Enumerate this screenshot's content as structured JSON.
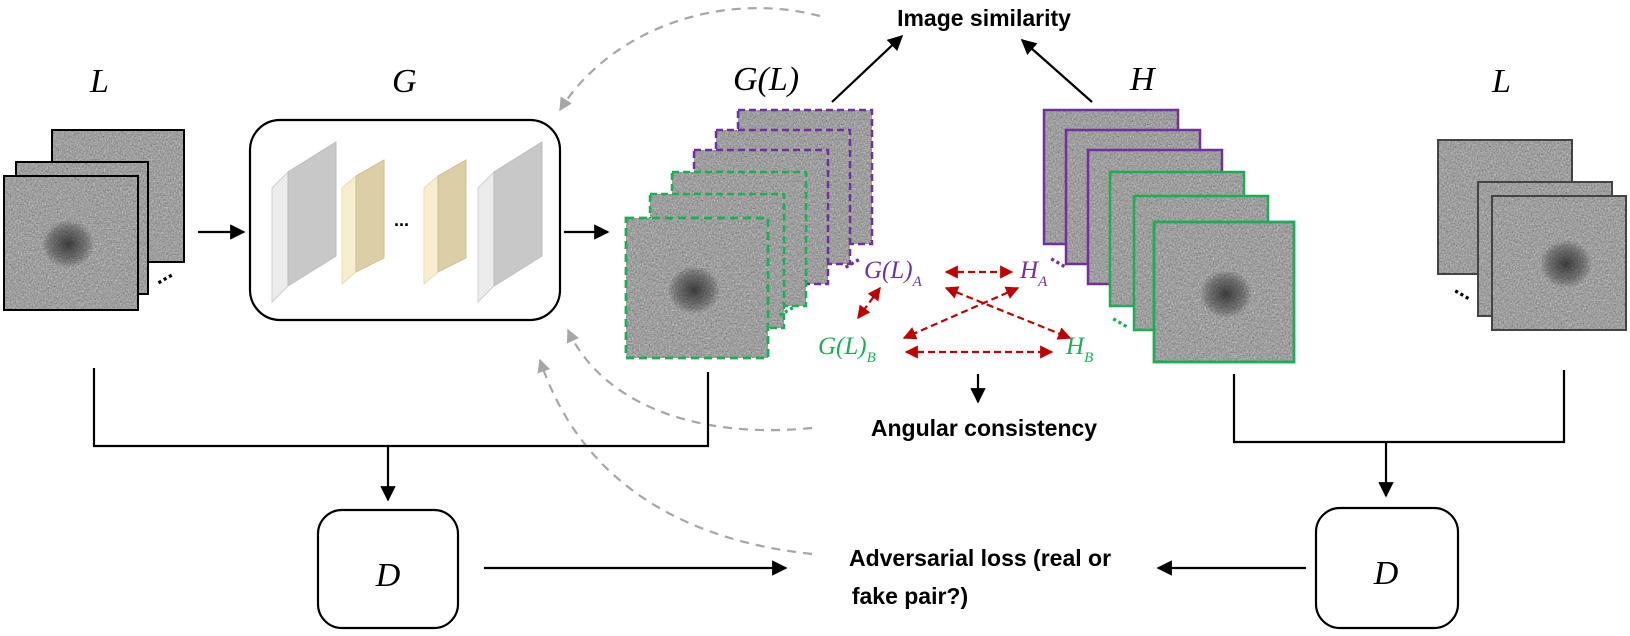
{
  "labels": {
    "L_left": "L",
    "G": "G",
    "GL": "G(L)",
    "H": "H",
    "L_right": "L",
    "D_left": "D",
    "D_right": "D",
    "gen_ellipsis": "...",
    "stack_ellipsis": "...",
    "GL_A_main": "G(L)",
    "GL_A_sub": "A",
    "H_A_main": "H",
    "H_A_sub": "A",
    "GL_B_main": "G(L)",
    "GL_B_sub": "B",
    "H_B_main": "H",
    "H_B_sub": "B"
  },
  "losses": {
    "image_similarity": "Image similarity",
    "angular_consistency": "Angular consistency",
    "adversarial_line1": "Adversarial loss (real or",
    "adversarial_line2": "fake pair?)"
  },
  "colors": {
    "purple": "#7030a0",
    "green": "#1aaf54",
    "red": "#c00000",
    "gray_dash": "#a6a6a6",
    "black": "#000000",
    "dark_frame": "#444444",
    "layer_gray_front": "#c8c8c8",
    "layer_gray_side": "#e8e8e8",
    "layer_tan_front": "#dccfa7",
    "layer_tan_side": "#f8eecf"
  },
  "icons": [
    "noisy-image-patch",
    "conv-layer-block",
    "arrow",
    "dashed-arrow"
  ]
}
